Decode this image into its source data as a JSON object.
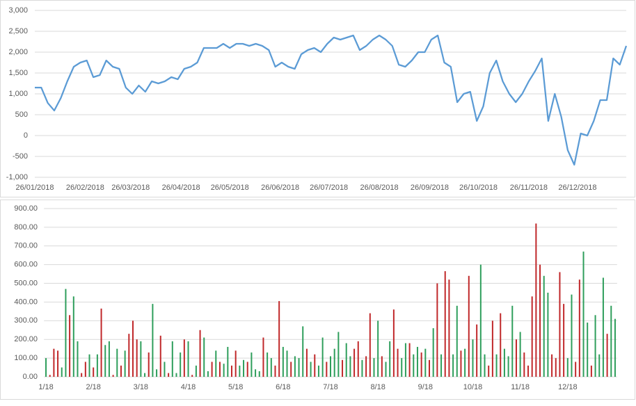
{
  "chart_data": [
    {
      "type": "line",
      "x": [
        "2018-01-26",
        "2018-01-30",
        "2018-02-03",
        "2018-02-07",
        "2018-02-11",
        "2018-02-15",
        "2018-02-19",
        "2018-02-23",
        "2018-02-27",
        "2018-03-03",
        "2018-03-07",
        "2018-03-11",
        "2018-03-15",
        "2018-03-19",
        "2018-03-23",
        "2018-03-27",
        "2018-03-31",
        "2018-04-04",
        "2018-04-08",
        "2018-04-12",
        "2018-04-16",
        "2018-04-20",
        "2018-04-24",
        "2018-04-28",
        "2018-05-02",
        "2018-05-06",
        "2018-05-10",
        "2018-05-14",
        "2018-05-18",
        "2018-05-22",
        "2018-05-26",
        "2018-05-30",
        "2018-06-03",
        "2018-06-07",
        "2018-06-11",
        "2018-06-15",
        "2018-06-19",
        "2018-06-23",
        "2018-06-27",
        "2018-07-01",
        "2018-07-05",
        "2018-07-09",
        "2018-07-13",
        "2018-07-17",
        "2018-07-21",
        "2018-07-25",
        "2018-07-29",
        "2018-08-02",
        "2018-08-06",
        "2018-08-10",
        "2018-08-14",
        "2018-08-18",
        "2018-08-22",
        "2018-08-26",
        "2018-08-30",
        "2018-09-03",
        "2018-09-07",
        "2018-09-11",
        "2018-09-15",
        "2018-09-19",
        "2018-09-23",
        "2018-09-27",
        "2018-10-01",
        "2018-10-05",
        "2018-10-09",
        "2018-10-13",
        "2018-10-17",
        "2018-10-21",
        "2018-10-25",
        "2018-10-29",
        "2018-11-02",
        "2018-11-06",
        "2018-11-10",
        "2018-11-14",
        "2018-11-18",
        "2018-11-22",
        "2018-11-26",
        "2018-11-30",
        "2018-12-04",
        "2018-12-08",
        "2018-12-12",
        "2018-12-16",
        "2018-12-20",
        "2018-12-24",
        "2018-12-28",
        "2019-01-01",
        "2019-01-05",
        "2019-01-09",
        "2019-01-13",
        "2019-01-17",
        "2019-01-21",
        "2019-01-25"
      ],
      "series": [
        {
          "color": "#5b9bd5",
          "values": [
            1150,
            1150,
            780,
            600,
            900,
            1300,
            1650,
            1750,
            1800,
            1400,
            1450,
            1800,
            1650,
            1600,
            1150,
            1000,
            1200,
            1050,
            1300,
            1250,
            1300,
            1400,
            1350,
            1600,
            1650,
            1750,
            2100,
            2100,
            2100,
            2200,
            2100,
            2200,
            2200,
            2150,
            2200,
            2150,
            2050,
            1650,
            1750,
            1650,
            1600,
            1950,
            2050,
            2100,
            2000,
            2200,
            2350,
            2300,
            2350,
            2400,
            2050,
            2150,
            2300,
            2400,
            2300,
            2150,
            1700,
            1650,
            1800,
            2000,
            2000,
            2300,
            2400,
            1750,
            1650,
            800,
            1000,
            1050,
            350,
            700,
            1500,
            1800,
            1300,
            1000,
            800,
            1000,
            1300,
            1550,
            1850,
            350,
            1000,
            450,
            -350,
            -700,
            50,
            0,
            350,
            850,
            850,
            1850,
            1700,
            2150
          ]
        }
      ],
      "xlim": [
        "2018-01-26",
        "2019-01-25"
      ],
      "xticks": [
        {
          "value": "2018-01-26",
          "label": "26/01/2018"
        },
        {
          "value": "2018-02-26",
          "label": "26/02/2018"
        },
        {
          "value": "2018-03-26",
          "label": "26/03/2018"
        },
        {
          "value": "2018-04-26",
          "label": "26/04/2018"
        },
        {
          "value": "2018-05-26",
          "label": "26/05/2018"
        },
        {
          "value": "2018-06-26",
          "label": "26/06/2018"
        },
        {
          "value": "2018-07-26",
          "label": "26/07/2018"
        },
        {
          "value": "2018-08-26",
          "label": "26/08/2018"
        },
        {
          "value": "2018-09-26",
          "label": "26/09/2018"
        },
        {
          "value": "2018-10-26",
          "label": "26/10/2018"
        },
        {
          "value": "2018-11-26",
          "label": "26/11/2018"
        },
        {
          "value": "2018-12-26",
          "label": "26/12/2018"
        }
      ],
      "ylim": [
        -1000,
        3000
      ],
      "yticks": [
        {
          "value": -1000,
          "label": "-1,000"
        },
        -500,
        0,
        500,
        {
          "value": 1000,
          "label": "1,000"
        },
        {
          "value": 1500,
          "label": "1,500"
        },
        {
          "value": 2000,
          "label": "2,000"
        },
        {
          "value": 2500,
          "label": "2,500"
        },
        {
          "value": 3000,
          "label": "3,000"
        }
      ],
      "grid": true
    },
    {
      "type": "bar",
      "categories": [
        "1/18",
        null,
        null,
        null,
        null,
        null,
        null,
        null,
        null,
        null,
        null,
        null,
        "2/18",
        null,
        null,
        null,
        null,
        null,
        null,
        null,
        null,
        null,
        null,
        null,
        "3/18",
        null,
        null,
        null,
        null,
        null,
        null,
        null,
        null,
        null,
        null,
        null,
        "4/18",
        null,
        null,
        null,
        null,
        null,
        null,
        null,
        null,
        null,
        null,
        null,
        "5/18",
        null,
        null,
        null,
        null,
        null,
        null,
        null,
        null,
        null,
        null,
        null,
        "6/18",
        null,
        null,
        null,
        null,
        null,
        null,
        null,
        null,
        null,
        null,
        null,
        "7/18",
        null,
        null,
        null,
        null,
        null,
        null,
        null,
        null,
        null,
        null,
        null,
        "8/18",
        null,
        null,
        null,
        null,
        null,
        null,
        null,
        null,
        null,
        null,
        null,
        "9/18",
        null,
        null,
        null,
        null,
        null,
        null,
        null,
        null,
        null,
        null,
        null,
        "10/18",
        null,
        null,
        null,
        null,
        null,
        null,
        null,
        null,
        null,
        null,
        null,
        "11/18",
        null,
        null,
        null,
        null,
        null,
        null,
        null,
        null,
        null,
        null,
        null,
        "12/18",
        null,
        null,
        null,
        null,
        null,
        null,
        null,
        null,
        null,
        null,
        null,
        null
      ],
      "series": [
        {
          "color": "#2e9e5b",
          "values": [
            100,
            null,
            null,
            null,
            50,
            470,
            null,
            430,
            190,
            null,
            null,
            120,
            null,
            120,
            null,
            170,
            190,
            null,
            150,
            null,
            140,
            null,
            null,
            null,
            190,
            20,
            null,
            390,
            40,
            null,
            80,
            null,
            190,
            20,
            130,
            null,
            190,
            null,
            60,
            null,
            210,
            30,
            null,
            140,
            null,
            70,
            160,
            null,
            null,
            60,
            90,
            null,
            130,
            40,
            30,
            null,
            130,
            100,
            null,
            null,
            160,
            140,
            null,
            110,
            100,
            270,
            null,
            80,
            null,
            60,
            210,
            null,
            110,
            150,
            240,
            null,
            180,
            110,
            null,
            null,
            90,
            null,
            null,
            100,
            300,
            null,
            80,
            190,
            null,
            null,
            100,
            180,
            null,
            120,
            160,
            null,
            150,
            null,
            260,
            null,
            120,
            null,
            null,
            120,
            380,
            null,
            150,
            null,
            200,
            null,
            600,
            120,
            null,
            null,
            120,
            null,
            150,
            110,
            380,
            null,
            240,
            null,
            null,
            null,
            null,
            null,
            540,
            450,
            null,
            null,
            null,
            null,
            100,
            440,
            null,
            null,
            670,
            290,
            null,
            330,
            120,
            530,
            null,
            380,
            310
          ]
        },
        {
          "color": "#c0282a",
          "values": [
            null,
            10,
            150,
            140,
            null,
            null,
            330,
            null,
            null,
            20,
            80,
            null,
            50,
            null,
            365,
            null,
            null,
            10,
            null,
            60,
            null,
            230,
            300,
            200,
            null,
            null,
            130,
            null,
            null,
            220,
            null,
            20,
            null,
            null,
            null,
            200,
            null,
            10,
            null,
            250,
            null,
            null,
            80,
            null,
            80,
            null,
            null,
            60,
            140,
            null,
            null,
            80,
            null,
            null,
            null,
            210,
            null,
            null,
            60,
            405,
            null,
            null,
            80,
            null,
            null,
            null,
            150,
            null,
            120,
            null,
            null,
            80,
            null,
            null,
            null,
            90,
            null,
            null,
            150,
            190,
            null,
            110,
            340,
            null,
            null,
            110,
            null,
            null,
            360,
            150,
            null,
            null,
            180,
            null,
            null,
            130,
            null,
            90,
            null,
            500,
            null,
            565,
            520,
            null,
            null,
            140,
            null,
            540,
            null,
            280,
            null,
            null,
            60,
            300,
            null,
            340,
            null,
            null,
            null,
            200,
            null,
            130,
            60,
            430,
            820,
            600,
            null,
            null,
            120,
            100,
            560,
            390,
            null,
            null,
            80,
            520,
            null,
            null,
            60,
            null,
            null,
            null,
            230,
            null,
            null
          ]
        }
      ],
      "ylim": [
        0,
        900
      ],
      "yticks": [
        {
          "value": 0,
          "label": "0.00"
        },
        {
          "value": 100,
          "label": "100.00"
        },
        {
          "value": 200,
          "label": "200.00"
        },
        {
          "value": 300,
          "label": "300.00"
        },
        {
          "value": 400,
          "label": "400.00"
        },
        {
          "value": 500,
          "label": "500.00"
        },
        {
          "value": 600,
          "label": "600.00"
        },
        {
          "value": 700,
          "label": "700.00"
        },
        {
          "value": 800,
          "label": "800.00"
        },
        {
          "value": 900,
          "label": "900.00"
        }
      ],
      "grid": true
    }
  ]
}
